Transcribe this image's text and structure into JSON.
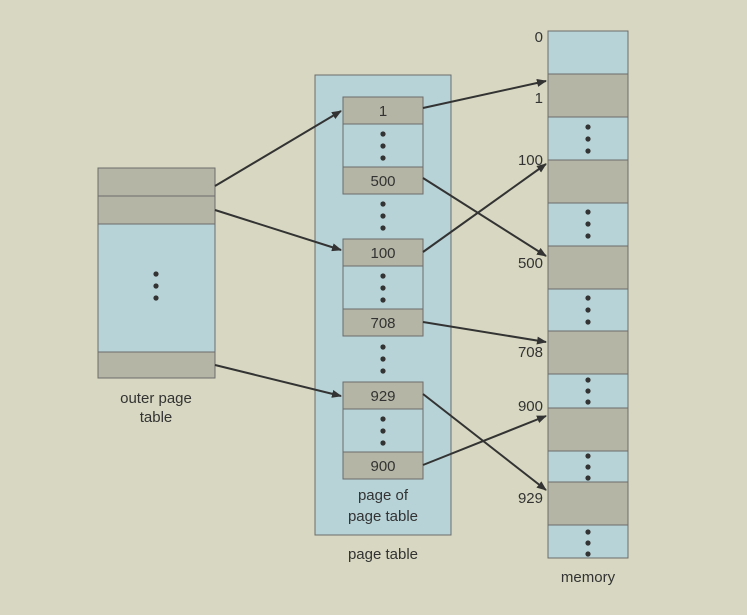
{
  "colors": {
    "background": "#d8d8c2",
    "table_fill": "#b7d3d7",
    "entry_fill": "#b5b5a5",
    "border": "#6b6b6b",
    "arrow": "#333333",
    "text": "#333333"
  },
  "outer_page_table": {
    "label_line1": "outer page",
    "label_line2": "table"
  },
  "page_table": {
    "label": "page table",
    "inner_label_line1": "page of",
    "inner_label_line2": "page table",
    "entries": {
      "e1": "1",
      "e500": "500",
      "e100": "100",
      "e708": "708",
      "e929": "929",
      "e900": "900"
    }
  },
  "memory": {
    "label": "memory",
    "frame_labels": {
      "f0": "0",
      "f1": "1",
      "f100": "100",
      "f500": "500",
      "f708": "708",
      "f900": "900",
      "f929": "929"
    }
  }
}
